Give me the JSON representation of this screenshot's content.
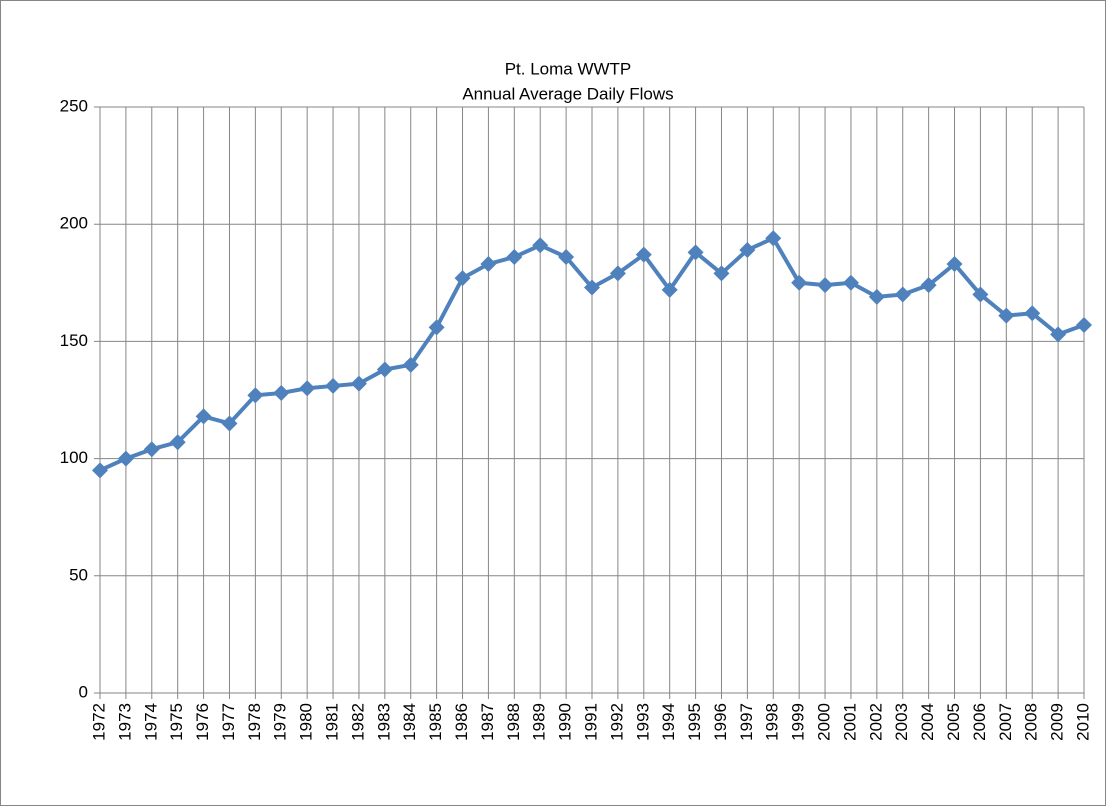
{
  "chart_data": {
    "type": "line",
    "title": "Pt. Loma WWTP",
    "subtitle": "Annual Average Daily Flows",
    "categories": [
      "1972",
      "1973",
      "1974",
      "1975",
      "1976",
      "1977",
      "1978",
      "1979",
      "1980",
      "1981",
      "1982",
      "1983",
      "1984",
      "1985",
      "1986",
      "1987",
      "1988",
      "1989",
      "1990",
      "1991",
      "1992",
      "1993",
      "1994",
      "1995",
      "1996",
      "1997",
      "1998",
      "1999",
      "2000",
      "2001",
      "2002",
      "2003",
      "2004",
      "2005",
      "2006",
      "2007",
      "2008",
      "2009",
      "2010"
    ],
    "values": [
      95,
      100,
      104,
      107,
      118,
      115,
      127,
      128,
      130,
      131,
      132,
      138,
      140,
      156,
      177,
      183,
      186,
      191,
      186,
      173,
      179,
      187,
      172,
      188,
      179,
      189,
      194,
      175,
      174,
      175,
      169,
      170,
      174,
      183,
      170,
      161,
      162,
      153,
      157
    ],
    "color": "#4f81bd",
    "ylim": [
      0,
      250
    ],
    "yticks": [
      0,
      50,
      100,
      150,
      200,
      250
    ],
    "grid": true
  }
}
